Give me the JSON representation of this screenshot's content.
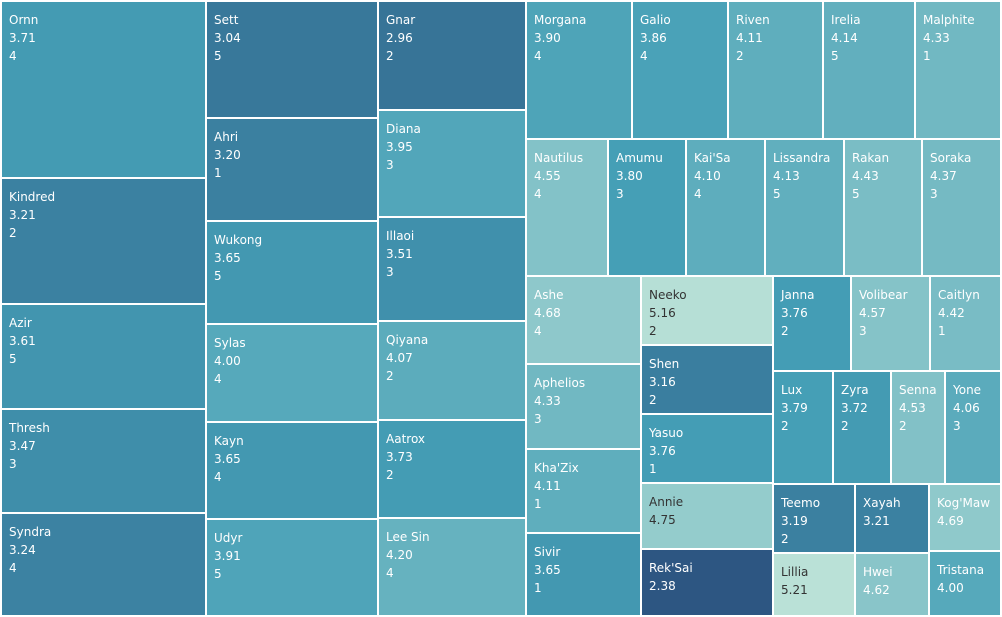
{
  "chart_data": {
    "type": "treemap",
    "title": "",
    "items": [
      {
        "name": "Ornn",
        "value": 3.71,
        "level": 4
      },
      {
        "name": "Kindred",
        "value": 3.21,
        "level": 2
      },
      {
        "name": "Azir",
        "value": 3.61,
        "level": 5
      },
      {
        "name": "Thresh",
        "value": 3.47,
        "level": 3
      },
      {
        "name": "Syndra",
        "value": 3.24,
        "level": 4
      },
      {
        "name": "Sett",
        "value": 3.04,
        "level": 5
      },
      {
        "name": "Ahri",
        "value": 3.2,
        "level": 1
      },
      {
        "name": "Wukong",
        "value": 3.65,
        "level": 5
      },
      {
        "name": "Sylas",
        "value": 4.0,
        "level": 4
      },
      {
        "name": "Kayn",
        "value": 3.65,
        "level": 4
      },
      {
        "name": "Udyr",
        "value": 3.91,
        "level": 5
      },
      {
        "name": "Gnar",
        "value": 2.96,
        "level": 2
      },
      {
        "name": "Diana",
        "value": 3.95,
        "level": 3
      },
      {
        "name": "Illaoi",
        "value": 3.51,
        "level": 3
      },
      {
        "name": "Qiyana",
        "value": 4.07,
        "level": 2
      },
      {
        "name": "Aatrox",
        "value": 3.73,
        "level": 2
      },
      {
        "name": "Lee Sin",
        "value": 4.2,
        "level": 4
      },
      {
        "name": "Morgana",
        "value": 3.9,
        "level": 4
      },
      {
        "name": "Galio",
        "value": 3.86,
        "level": 4
      },
      {
        "name": "Riven",
        "value": 4.11,
        "level": 2
      },
      {
        "name": "Irelia",
        "value": 4.14,
        "level": 5
      },
      {
        "name": "Malphite",
        "value": 4.33,
        "level": 1
      },
      {
        "name": "Nautilus",
        "value": 4.55,
        "level": 4
      },
      {
        "name": "Amumu",
        "value": 3.8,
        "level": 3
      },
      {
        "name": "Kai'Sa",
        "value": 4.1,
        "level": 4
      },
      {
        "name": "Lissandra",
        "value": 4.13,
        "level": 5
      },
      {
        "name": "Rakan",
        "value": 4.43,
        "level": 5
      },
      {
        "name": "Soraka",
        "value": 4.37,
        "level": 3
      },
      {
        "name": "Ashe",
        "value": 4.68,
        "level": 4
      },
      {
        "name": "Neeko",
        "value": 5.16,
        "level": 2
      },
      {
        "name": "Janna",
        "value": 3.76,
        "level": 2
      },
      {
        "name": "Volibear",
        "value": 4.57,
        "level": 3
      },
      {
        "name": "Caitlyn",
        "value": 4.42,
        "level": 1
      },
      {
        "name": "Aphelios",
        "value": 4.33,
        "level": 3
      },
      {
        "name": "Shen",
        "value": 3.16,
        "level": 2
      },
      {
        "name": "Lux",
        "value": 3.79,
        "level": 2
      },
      {
        "name": "Zyra",
        "value": 3.72,
        "level": 2
      },
      {
        "name": "Senna",
        "value": 4.53,
        "level": 2
      },
      {
        "name": "Yone",
        "value": 4.06,
        "level": 3
      },
      {
        "name": "Kha'Zix",
        "value": 4.11,
        "level": 1
      },
      {
        "name": "Yasuo",
        "value": 3.76,
        "level": 1
      },
      {
        "name": "Annie",
        "value": 4.75,
        "level": null
      },
      {
        "name": "Teemo",
        "value": 3.19,
        "level": 2
      },
      {
        "name": "Xayah",
        "value": 3.21,
        "level": null
      },
      {
        "name": "Kog'Maw",
        "value": 4.69,
        "level": null
      },
      {
        "name": "Sivir",
        "value": 3.65,
        "level": 1
      },
      {
        "name": "Rek'Sai",
        "value": 2.38,
        "level": null
      },
      {
        "name": "Lillia",
        "value": 5.21,
        "level": null
      },
      {
        "name": "Hwei",
        "value": 4.62,
        "level": null
      },
      {
        "name": "Tristana",
        "value": 4.0,
        "level": null
      }
    ],
    "color_scale": {
      "low_value": 2.38,
      "high_value": 5.21,
      "low_color": "#2d5682",
      "mid_color": "#459fb6",
      "high_color": "#bae1d7"
    }
  }
}
